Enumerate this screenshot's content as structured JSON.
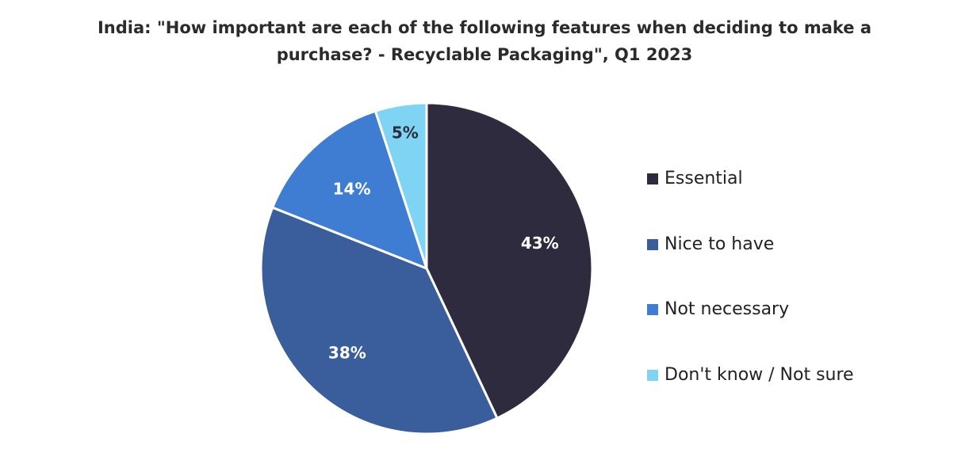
{
  "chart_data": {
    "type": "pie",
    "title_lines": [
      "India: \"How important are each of the following features when deciding to make a",
      "purchase? - Recyclable Packaging\", Q1 2023"
    ],
    "categories": [
      "Essential",
      "Nice to have",
      "Not necessary",
      "Don't know / Not sure"
    ],
    "values": [
      43,
      38,
      14,
      5
    ],
    "data_labels": [
      "43%",
      "38%",
      "14%",
      "5%"
    ],
    "colors": [
      "#2e2b3e",
      "#3a5d9b",
      "#3f7dd3",
      "#7fd3f3"
    ],
    "label_colors": [
      "#ffffff",
      "#ffffff",
      "#ffffff",
      "#2e2b3e"
    ],
    "legend_position": "right"
  }
}
